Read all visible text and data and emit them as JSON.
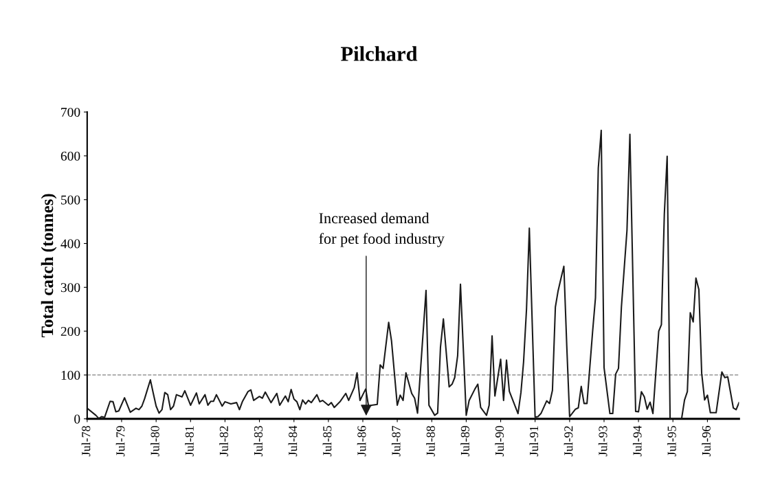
{
  "chart_data": {
    "type": "line",
    "title": "Pilchard",
    "ylabel": "Total catch (tonnes)",
    "x": [
      "1978-07",
      "1978-10",
      "1978-11",
      "1978-12",
      "1979-01",
      "1979-03",
      "1979-04",
      "1979-05",
      "1979-06",
      "1979-08",
      "1979-10",
      "1979-12",
      "1980-01",
      "1980-02",
      "1980-03",
      "1980-05",
      "1980-06",
      "1980-07",
      "1980-08",
      "1980-09",
      "1980-10",
      "1980-11",
      "1980-12",
      "1981-01",
      "1981-02",
      "1981-04",
      "1981-05",
      "1981-07",
      "1981-09",
      "1981-10",
      "1981-12",
      "1982-01",
      "1982-02",
      "1982-03",
      "1982-04",
      "1982-06",
      "1982-07",
      "1982-09",
      "1982-11",
      "1982-12",
      "1983-01",
      "1983-03",
      "1983-04",
      "1983-05",
      "1983-07",
      "1983-08",
      "1983-09",
      "1983-11",
      "1984-01",
      "1984-02",
      "1984-04",
      "1984-05",
      "1984-06",
      "1984-07",
      "1984-08",
      "1984-09",
      "1984-10",
      "1984-11",
      "1984-12",
      "1985-01",
      "1985-03",
      "1985-04",
      "1985-05",
      "1985-07",
      "1985-08",
      "1985-09",
      "1985-11",
      "1986-01",
      "1986-02",
      "1986-04",
      "1986-05",
      "1986-06",
      "1986-07",
      "1986-08",
      "1986-09",
      "1986-10",
      "1986-12",
      "1987-01",
      "1987-02",
      "1987-04",
      "1987-05",
      "1987-07",
      "1987-08",
      "1987-09",
      "1987-10",
      "1987-12",
      "1988-01",
      "1988-02",
      "1988-05",
      "1988-06",
      "1988-08",
      "1988-09",
      "1988-10",
      "1988-11",
      "1989-01",
      "1989-02",
      "1989-03",
      "1989-04",
      "1989-05",
      "1989-07",
      "1989-08",
      "1989-10",
      "1989-11",
      "1989-12",
      "1990-02",
      "1990-03",
      "1990-04",
      "1990-05",
      "1990-07",
      "1990-08",
      "1990-09",
      "1990-10",
      "1991-01",
      "1991-02",
      "1991-03",
      "1991-04",
      "1991-05",
      "1991-07",
      "1991-08",
      "1991-09",
      "1991-11",
      "1991-12",
      "1992-01",
      "1992-02",
      "1992-03",
      "1992-04",
      "1992-05",
      "1992-06",
      "1992-07",
      "1992-09",
      "1992-10",
      "1992-11",
      "1992-12",
      "1993-01",
      "1993-03",
      "1993-04",
      "1993-05",
      "1993-06",
      "1993-07",
      "1993-09",
      "1993-10",
      "1993-11",
      "1993-12",
      "1994-01",
      "1994-03",
      "1994-04",
      "1994-06",
      "1994-07",
      "1994-08",
      "1994-09",
      "1994-10",
      "1994-11",
      "1994-12",
      "1995-02",
      "1995-03",
      "1995-04",
      "1995-05",
      "1995-06",
      "1995-10",
      "1995-11",
      "1995-12",
      "1996-01",
      "1996-02",
      "1996-03",
      "1996-04",
      "1996-05",
      "1996-06",
      "1996-07",
      "1996-08",
      "1996-10",
      "1996-12",
      "1997-01",
      "1997-02",
      "1997-04",
      "1997-05",
      "1997-06"
    ],
    "series": [
      {
        "color": "#1a1a1a",
        "values": [
          24,
          8,
          1,
          5,
          3,
          40,
          39,
          16,
          18,
          48,
          15,
          24,
          21,
          29,
          46,
          89,
          58,
          29,
          13,
          21,
          60,
          55,
          21,
          29,
          55,
          50,
          64,
          31,
          59,
          34,
          55,
          31,
          40,
          40,
          55,
          29,
          39,
          34,
          37,
          21,
          39,
          62,
          66,
          42,
          51,
          47,
          61,
          37,
          58,
          31,
          52,
          39,
          67,
          45,
          39,
          21,
          43,
          34,
          42,
          37,
          55,
          39,
          42,
          31,
          37,
          26,
          39,
          58,
          42,
          71,
          105,
          42,
          55,
          68,
          27,
          31,
          33,
          123,
          115,
          220,
          178,
          31,
          54,
          42,
          105,
          58,
          47,
          13,
          293,
          31,
          8,
          13,
          163,
          228,
          73,
          79,
          94,
          144,
          307,
          8,
          42,
          68,
          79,
          26,
          8,
          31,
          189,
          52,
          136,
          42,
          134,
          63,
          12,
          60,
          130,
          250,
          435,
          4,
          5,
          12,
          41,
          35,
          65,
          255,
          292,
          321,
          348,
          165,
          5,
          22,
          25,
          74,
          35,
          35,
          197,
          276,
          572,
          658,
          117,
          12,
          12,
          102,
          115,
          255,
          430,
          649,
          17,
          16,
          62,
          50,
          22,
          38,
          12,
          200,
          215,
          467,
          599,
          0,
          0,
          43,
          62,
          242,
          221,
          321,
          295,
          104,
          43,
          54,
          14,
          14,
          107,
          94,
          96,
          25,
          21,
          37
        ]
      }
    ],
    "xlim": [
      "1978-07",
      "1997-06"
    ],
    "xticks": [
      {
        "value": "1978-07",
        "label": "Jul-78"
      },
      {
        "value": "1979-07",
        "label": "Jul-79"
      },
      {
        "value": "1980-07",
        "label": "Jul-80"
      },
      {
        "value": "1981-07",
        "label": "Jul-81"
      },
      {
        "value": "1982-07",
        "label": "Jul-82"
      },
      {
        "value": "1983-07",
        "label": "Jul-83"
      },
      {
        "value": "1984-07",
        "label": "Jul-84"
      },
      {
        "value": "1985-07",
        "label": "Jul-85"
      },
      {
        "value": "1986-07",
        "label": "Jul-86"
      },
      {
        "value": "1987-07",
        "label": "Jul-87"
      },
      {
        "value": "1988-07",
        "label": "Jul-88"
      },
      {
        "value": "1989-07",
        "label": "Jul-89"
      },
      {
        "value": "1990-07",
        "label": "Jul-90"
      },
      {
        "value": "1991-07",
        "label": "Jul-91"
      },
      {
        "value": "1992-07",
        "label": "Jul-92"
      },
      {
        "value": "1993-07",
        "label": "Jul-93"
      },
      {
        "value": "1994-07",
        "label": "Jul-94"
      },
      {
        "value": "1995-07",
        "label": "Jul-95"
      },
      {
        "value": "1996-07",
        "label": "Jul-96"
      }
    ],
    "ylim": [
      0,
      700
    ],
    "yticks": [
      0,
      100,
      200,
      300,
      400,
      500,
      600,
      700
    ],
    "ref_lines": [
      {
        "axis": "y",
        "value": 100,
        "color": "#808080",
        "line_style": "dashed"
      }
    ],
    "annotations": [
      "Increased demand\nfor pet food industry"
    ],
    "grid": false,
    "legend": false,
    "marker": "none",
    "line_style": "solid"
  }
}
